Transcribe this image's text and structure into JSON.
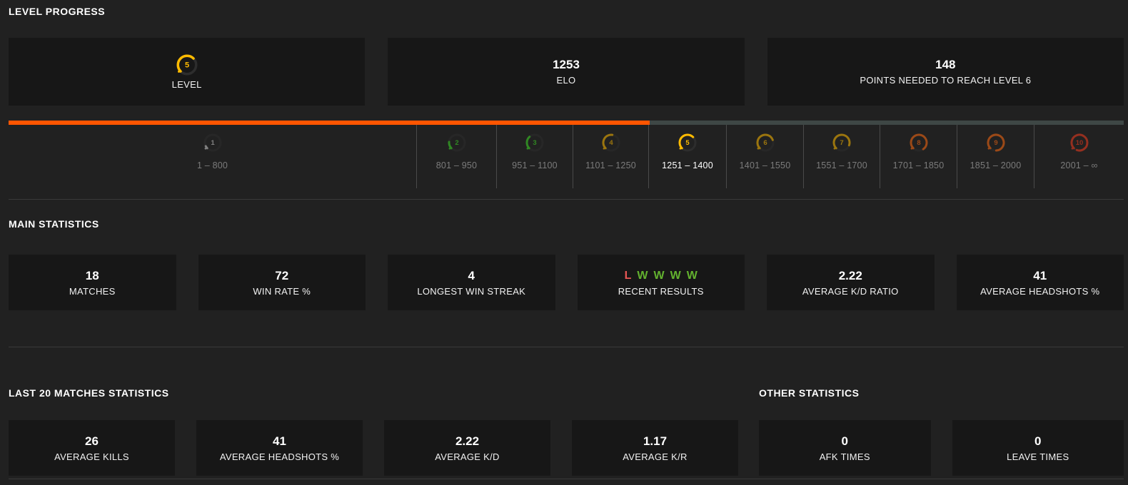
{
  "level_progress": {
    "title": "LEVEL PROGRESS",
    "cards": [
      {
        "type": "level",
        "level": 5,
        "label": "LEVEL"
      },
      {
        "value": "1253",
        "label": "ELO"
      },
      {
        "value": "148",
        "label": "POINTS NEEDED TO REACH LEVEL 6"
      }
    ],
    "progress_percent": 57.5,
    "levels": [
      {
        "level": 1,
        "range": "1 – 800",
        "current": false
      },
      {
        "level": 2,
        "range": "801 – 950",
        "current": false
      },
      {
        "level": 3,
        "range": "951 – 1100",
        "current": false
      },
      {
        "level": 4,
        "range": "1101 – 1250",
        "current": false
      },
      {
        "level": 5,
        "range": "1251 – 1400",
        "current": true
      },
      {
        "level": 6,
        "range": "1401 – 1550",
        "current": false
      },
      {
        "level": 7,
        "range": "1551 – 1700",
        "current": false
      },
      {
        "level": 8,
        "range": "1701 – 1850",
        "current": false
      },
      {
        "level": 9,
        "range": "1851 – 2000",
        "current": false
      },
      {
        "level": 10,
        "range": "2001 – ∞",
        "current": false
      }
    ]
  },
  "main_statistics": {
    "title": "MAIN STATISTICS",
    "cards": [
      {
        "value": "18",
        "label": "MATCHES"
      },
      {
        "value": "72",
        "label": "WIN RATE %"
      },
      {
        "value": "4",
        "label": "LONGEST WIN STREAK"
      },
      {
        "type": "results",
        "results": [
          "L",
          "W",
          "W",
          "W",
          "W"
        ],
        "label": "RECENT RESULTS"
      },
      {
        "value": "2.22",
        "label": "AVERAGE K/D RATIO"
      },
      {
        "value": "41",
        "label": "AVERAGE HEADSHOTS %"
      }
    ]
  },
  "last_20_matches_statistics": {
    "title": "LAST 20 MATCHES STATISTICS",
    "cards": [
      {
        "value": "26",
        "label": "AVERAGE KILLS"
      },
      {
        "value": "41",
        "label": "AVERAGE HEADSHOTS %"
      },
      {
        "value": "2.22",
        "label": "AVERAGE K/D"
      },
      {
        "value": "1.17",
        "label": "AVERAGE K/R"
      }
    ]
  },
  "other_statistics": {
    "title": "OTHER STATISTICS",
    "cards": [
      {
        "value": "0",
        "label": "AFK TIMES"
      },
      {
        "value": "0",
        "label": "LEAVE TIMES"
      }
    ]
  },
  "colors": {
    "accent_orange": "#ff5500",
    "bar_track": "#3e4745",
    "card_bg": "#171717",
    "page_bg": "#212121",
    "win_green": "#63b22f",
    "loss_red": "#e85654",
    "muted_text": "#7b7b7b",
    "level": {
      "1": "#cfcfcf",
      "2": "#3edc25",
      "3": "#3edc25",
      "4": "#ffbb00",
      "5": "#ffbb00",
      "6": "#ffbb00",
      "7": "#ffbb00",
      "8": "#ff6a10",
      "9": "#ff6a10",
      "10": "#f43b1e"
    }
  }
}
